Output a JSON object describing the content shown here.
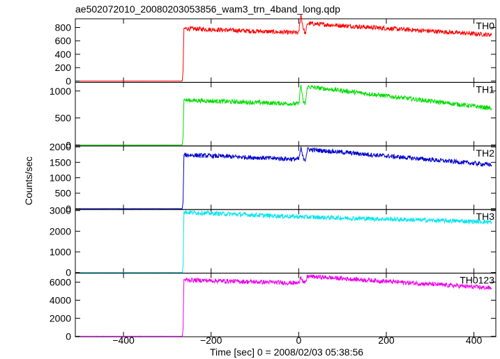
{
  "chart_data": {
    "type": "line",
    "title": "ae502072010_20080203053856_wam3_trn_4band_long.qdp",
    "xlabel": "Time [sec] 0 = 2008/02/03 05:38:56",
    "ylabel": "Counts/sec",
    "xlim": [
      -510,
      450
    ],
    "x_ticks": [
      -400,
      -200,
      0,
      200,
      400
    ],
    "x_ticklabels": [
      "−400",
      "−200",
      "0",
      "200",
      "400"
    ],
    "grid": false,
    "trigger_time": -265,
    "panels": [
      {
        "name": "TH0",
        "color": "#ff0000",
        "ylim": [
          -20,
          930
        ],
        "yticks": [
          0,
          200,
          400,
          600,
          800
        ],
        "x": [
          -500,
          -266,
          -264,
          -262,
          -260,
          0,
          5,
          10,
          15,
          20,
          440
        ],
        "y": [
          0,
          0,
          150,
          790,
          785,
          720,
          990,
          800,
          700,
          860,
          690
        ]
      },
      {
        "name": "TH1",
        "color": "#00dd00",
        "ylim": [
          -20,
          1160
        ],
        "yticks": [
          0,
          500,
          1000
        ],
        "x": [
          -500,
          -266,
          -264,
          -262,
          -260,
          0,
          5,
          10,
          15,
          20,
          440
        ],
        "y": [
          0,
          0,
          150,
          840,
          830,
          760,
          1120,
          800,
          760,
          1080,
          680
        ]
      },
      {
        "name": "TH2",
        "color": "#0000cc",
        "ylim": [
          -30,
          2030
        ],
        "yticks": [
          0,
          500,
          1000,
          1500,
          2000
        ],
        "x": [
          -500,
          -266,
          -264,
          -262,
          -260,
          0,
          5,
          10,
          15,
          20,
          440
        ],
        "y": [
          0,
          0,
          220,
          1750,
          1740,
          1600,
          1950,
          1650,
          1580,
          1920,
          1420
        ]
      },
      {
        "name": "TH3",
        "color": "#00e5ee",
        "ylim": [
          -30,
          3050
        ],
        "yticks": [
          0,
          1000,
          2000,
          3000
        ],
        "x": [
          -500,
          -266,
          -264,
          -262,
          -260,
          0,
          440
        ],
        "y": [
          0,
          0,
          300,
          2950,
          2920,
          2700,
          2450
        ]
      },
      {
        "name": "TH0123",
        "color": "#ee00ee",
        "ylim": [
          -50,
          7000
        ],
        "yticks": [
          0,
          2000,
          4000,
          6000
        ],
        "x": [
          -500,
          -266,
          -264,
          -262,
          -260,
          0,
          5,
          10,
          15,
          20,
          440
        ],
        "y": [
          0,
          0,
          800,
          6300,
          6250,
          5900,
          6700,
          6000,
          5850,
          6650,
          5350
        ]
      }
    ]
  }
}
